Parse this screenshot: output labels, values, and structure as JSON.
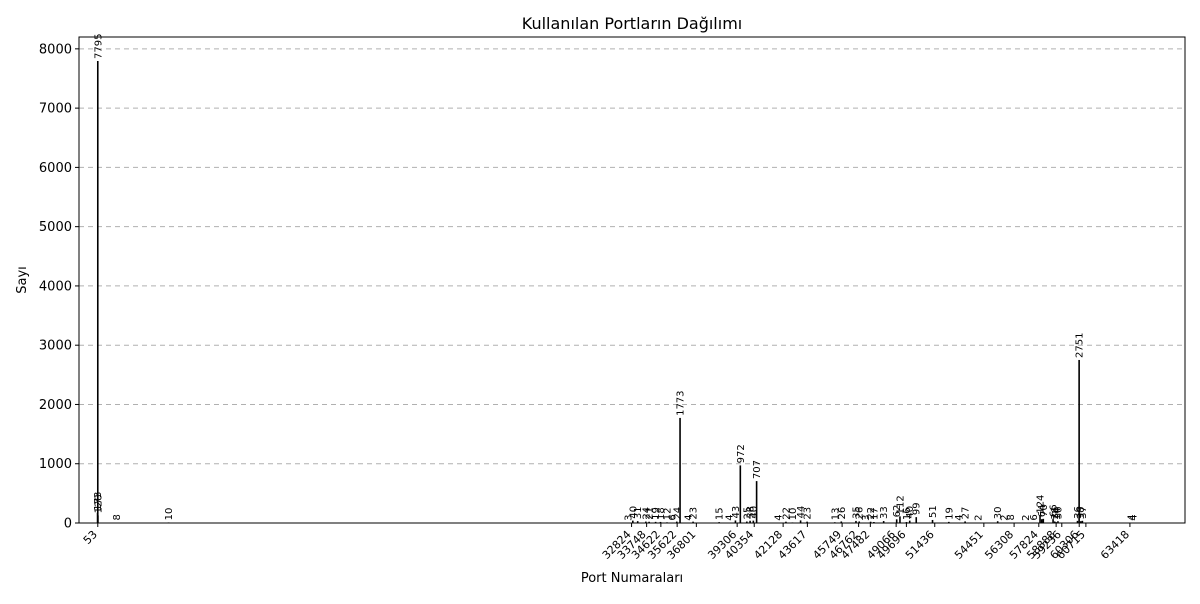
{
  "chart_data": {
    "type": "bar",
    "title": "Kullanılan Portların Dağılımı",
    "xlabel": "Port Numaraları",
    "ylabel": "Sayı",
    "xlim": [
      -1100,
      66800
    ],
    "ylim": [
      0,
      8200
    ],
    "grid": true,
    "bar_color": "#000000",
    "yticks": [
      0,
      1000,
      2000,
      3000,
      4000,
      5000,
      6000,
      7000,
      8000
    ],
    "xtick_labels": [
      53,
      32824,
      33748,
      34622,
      35622,
      36801,
      39306,
      40354,
      42128,
      43617,
      45749,
      46762,
      47482,
      49066,
      49696,
      51436,
      54451,
      56308,
      57824,
      58888,
      59236,
      60306,
      60715,
      63418
    ],
    "bars": [
      {
        "port": 53,
        "count": 7795
      },
      {
        "port": 40,
        "count": 173
      },
      {
        "port": 60,
        "count": 128
      },
      {
        "port": 1200,
        "count": 8
      },
      {
        "port": 4400,
        "count": 10
      },
      {
        "port": 32600,
        "count": 3
      },
      {
        "port": 32900,
        "count": 40
      },
      {
        "port": 33200,
        "count": 31
      },
      {
        "port": 33700,
        "count": 24
      },
      {
        "port": 33900,
        "count": 21
      },
      {
        "port": 34300,
        "count": 19
      },
      {
        "port": 34600,
        "count": 18
      },
      {
        "port": 35000,
        "count": 12
      },
      {
        "port": 35300,
        "count": 6
      },
      {
        "port": 35600,
        "count": 24
      },
      {
        "port": 35800,
        "count": 1773
      },
      {
        "port": 36300,
        "count": 4
      },
      {
        "port": 36600,
        "count": 23
      },
      {
        "port": 38200,
        "count": 15
      },
      {
        "port": 38800,
        "count": 4
      },
      {
        "port": 39200,
        "count": 43
      },
      {
        "port": 39500,
        "count": 972
      },
      {
        "port": 39900,
        "count": 25
      },
      {
        "port": 40100,
        "count": 38
      },
      {
        "port": 40300,
        "count": 40
      },
      {
        "port": 40500,
        "count": 707
      },
      {
        "port": 41800,
        "count": 4
      },
      {
        "port": 42300,
        "count": 22
      },
      {
        "port": 42700,
        "count": 10
      },
      {
        "port": 43200,
        "count": 44
      },
      {
        "port": 43600,
        "count": 23
      },
      {
        "port": 45300,
        "count": 13
      },
      {
        "port": 45700,
        "count": 26
      },
      {
        "port": 46600,
        "count": 35
      },
      {
        "port": 46800,
        "count": 26
      },
      {
        "port": 47200,
        "count": 3
      },
      {
        "port": 47500,
        "count": 22
      },
      {
        "port": 47700,
        "count": 17
      },
      {
        "port": 48300,
        "count": 33
      },
      {
        "port": 49100,
        "count": 62
      },
      {
        "port": 49300,
        "count": 112
      },
      {
        "port": 49700,
        "count": 16
      },
      {
        "port": 49900,
        "count": 40
      },
      {
        "port": 50300,
        "count": 99
      },
      {
        "port": 51300,
        "count": 51
      },
      {
        "port": 52300,
        "count": 19
      },
      {
        "port": 52900,
        "count": 4
      },
      {
        "port": 53300,
        "count": 27
      },
      {
        "port": 54100,
        "count": 2
      },
      {
        "port": 55300,
        "count": 30
      },
      {
        "port": 55700,
        "count": 2
      },
      {
        "port": 56100,
        "count": 8
      },
      {
        "port": 57000,
        "count": 2
      },
      {
        "port": 57500,
        "count": 6
      },
      {
        "port": 57900,
        "count": 124
      },
      {
        "port": 58000,
        "count": 64
      },
      {
        "port": 58100,
        "count": 70
      },
      {
        "port": 58700,
        "count": 66
      },
      {
        "port": 58800,
        "count": 26
      },
      {
        "port": 58900,
        "count": 14
      },
      {
        "port": 59000,
        "count": 30
      },
      {
        "port": 60200,
        "count": 36
      },
      {
        "port": 60300,
        "count": 2751
      },
      {
        "port": 60400,
        "count": 30
      },
      {
        "port": 60500,
        "count": 37
      },
      {
        "port": 63500,
        "count": 4
      },
      {
        "port": 63600,
        "count": 4
      }
    ]
  }
}
